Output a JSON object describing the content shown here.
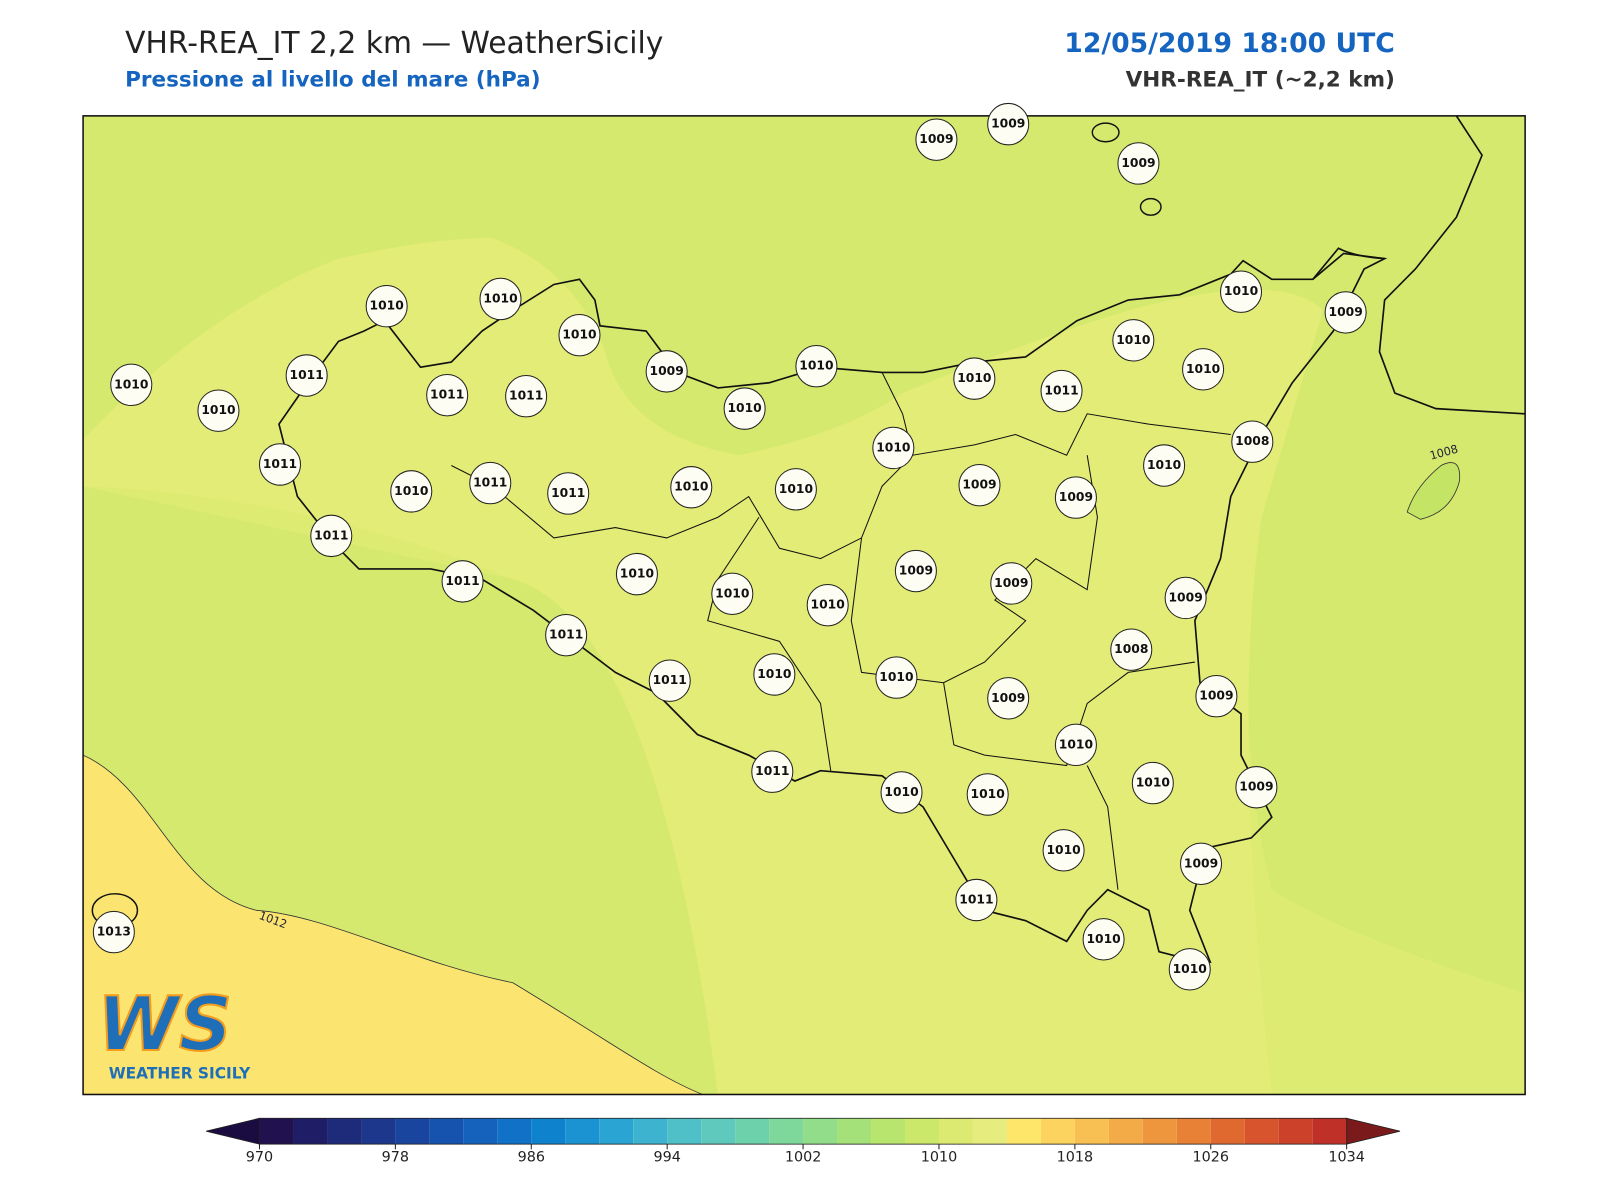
{
  "header": {
    "title": "VHR-REA_IT 2,2 km — WeatherSicily",
    "subtitle": "Pressione al livello del mare (hPa)",
    "datetime": "12/05/2019 18:00 UTC",
    "model": "VHR-REA_IT (~2,2 km)"
  },
  "stations": [
    1009,
    1009,
    1009,
    1010,
    1010,
    1010,
    1009,
    1010,
    1010,
    1010,
    1011,
    1010,
    1010,
    1009,
    1010,
    1010,
    1010,
    1011,
    1011,
    1011,
    1011,
    1010,
    1011,
    1011,
    1010,
    1010,
    1010,
    1009,
    1009,
    1010,
    1008,
    1011,
    1011,
    1010,
    1010,
    1010,
    1009,
    1009,
    1009,
    1011,
    1011,
    1010,
    1010,
    1009,
    1008,
    1009,
    1010,
    1010,
    1009,
    1011,
    1010,
    1010,
    1010,
    1009,
    1011,
    1010,
    1010,
    1013
  ],
  "contour_labels": [
    1012,
    1008
  ],
  "colorbar": {
    "levels": [
      970,
      972,
      974,
      976,
      978,
      980,
      982,
      984,
      986,
      988,
      990,
      992,
      994,
      996,
      998,
      1000,
      1002,
      1004,
      1006,
      1008,
      1010,
      1012,
      1014,
      1016,
      1018,
      1020,
      1022,
      1024,
      1026,
      1028,
      1030,
      1032,
      1034
    ],
    "colors": [
      "#21124f",
      "#1f1d66",
      "#1e2a7a",
      "#1c378c",
      "#1a459e",
      "#1653ae",
      "#1462bb",
      "#1171c6",
      "#0f82ce",
      "#1b93d2",
      "#2aa4d3",
      "#3db3d0",
      "#4fc0c8",
      "#5ec9bc",
      "#6dd1ac",
      "#7ed89b",
      "#91dd89",
      "#a4e179",
      "#b8e56d",
      "#cbe86a",
      "#dcea72",
      "#e6ec7e",
      "#fde66a",
      "#fcd35e",
      "#f8c052",
      "#f3ab47",
      "#ee963e",
      "#e88036",
      "#e06930",
      "#d7542c",
      "#cc4129",
      "#be3028"
    ],
    "under_color": "#1a0c40",
    "over_color": "#7a1a1a",
    "ticks": [
      970,
      978,
      986,
      994,
      1002,
      1010,
      1018,
      1026,
      1034
    ]
  },
  "logo": {
    "mark": "WS",
    "name": "WEATHER SICILY"
  }
}
